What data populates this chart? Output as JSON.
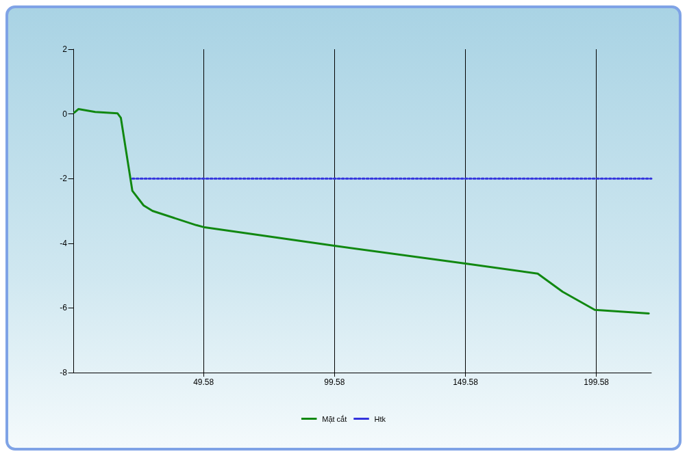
{
  "chart_data": {
    "type": "line",
    "xlim": [
      -0.42,
      220.6
    ],
    "xticks": [
      49.58,
      99.58,
      149.58,
      199.58
    ],
    "ylim": [
      -8,
      2
    ],
    "yticks": [
      -8,
      -6,
      -4,
      -2,
      0,
      2
    ],
    "grid": "x",
    "legend": "bottom",
    "marker": "none",
    "series": [
      {
        "name": "Mặt cắt",
        "color": "#118811",
        "line_style": "solid",
        "x": [
          0.27,
          1.8,
          8.2,
          16.7,
          18.0,
          22.4,
          26.7,
          30.1,
          46.8,
          49.6,
          99.58,
          149.58,
          177.2,
          186.7,
          199.0,
          219.6
        ],
        "values": [
          0.04,
          0.15,
          0.06,
          0.02,
          -0.12,
          -2.38,
          -2.83,
          -3.0,
          -3.44,
          -3.5,
          -4.08,
          -4.63,
          -4.94,
          -5.5,
          -6.06,
          -6.17
        ]
      },
      {
        "name": "Htk",
        "color": "#3333dd",
        "line_style": "dotted",
        "x": [
          22.4,
          220.6
        ],
        "values": [
          -2,
          -2
        ]
      }
    ]
  }
}
